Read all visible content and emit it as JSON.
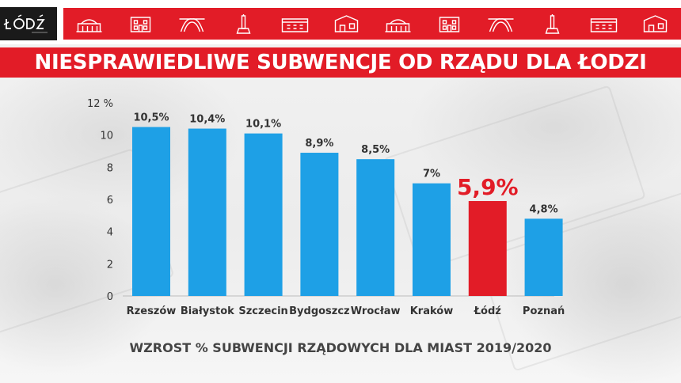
{
  "header": {
    "logo_text": "ŁÓDŹ",
    "icons": [
      "station-building-icon",
      "tenement-house-icon",
      "gate-arch-icon",
      "monument-icon",
      "palace-icon",
      "factory-building-icon",
      "arena-dome-icon",
      "train-station-icon",
      "villa-icon",
      "office-block-icon",
      "heart-emblem-icon",
      "manor-house-icon"
    ]
  },
  "banner": {
    "title": "NIESPRAWIEDLIWE SUBWENCJE OD RZĄDU DLA ŁODZI"
  },
  "colors": {
    "brand_red": "#e21c27",
    "bar_blue": "#1ea0e6",
    "highlight_red": "#e21c27"
  },
  "chart_data": {
    "type": "bar",
    "title": "NIESPRAWIEDLIWE SUBWENCJE OD RZĄDU DLA ŁODZI",
    "xlabel": "WZROST % SUBWENCJI RZĄDOWYCH DLA MIAST  2019/2020",
    "ylabel": "",
    "categories": [
      "Rzeszów",
      "Białystok",
      "Szczecin",
      "Bydgoszcz",
      "Wrocław",
      "Kraków",
      "Łódź",
      "Poznań"
    ],
    "values": [
      10.5,
      10.4,
      10.1,
      8.9,
      8.5,
      7,
      5.9,
      4.8
    ],
    "value_labels": [
      "10,5%",
      "10,4%",
      "10,1%",
      "8,9%",
      "8,5%",
      "7%",
      "5,9%",
      "4,8%"
    ],
    "highlight_index": 6,
    "ylim": [
      0,
      12
    ],
    "yticks": [
      0,
      2,
      4,
      6,
      8,
      10,
      12
    ],
    "ytick_labels": [
      "0",
      "2",
      "4",
      "6",
      "8",
      "10",
      "12 %"
    ],
    "grid": false,
    "legend": "none"
  }
}
